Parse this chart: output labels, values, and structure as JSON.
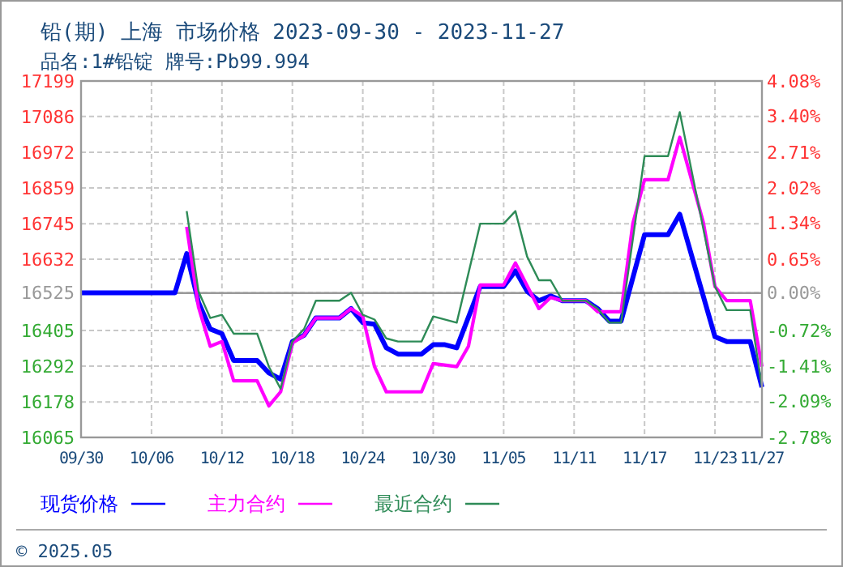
{
  "chart_data": {
    "type": "line",
    "title": "铅(期) 上海 市场价格 2023-09-30 - 2023-11-27",
    "subtitle": "品名:1#铅锭 牌号:Pb99.994",
    "annotations": [
      "© 2025.05"
    ],
    "xlim": [
      "2023-09-30",
      "2023-11-27"
    ],
    "xticks": [
      {
        "value": "2023-09-30",
        "label": "09/30"
      },
      {
        "value": "2023-10-06",
        "label": "10/06"
      },
      {
        "value": "2023-10-12",
        "label": "10/12"
      },
      {
        "value": "2023-10-18",
        "label": "10/18"
      },
      {
        "value": "2023-10-24",
        "label": "10/24"
      },
      {
        "value": "2023-10-30",
        "label": "10/30"
      },
      {
        "value": "2023-11-05",
        "label": "11/05"
      },
      {
        "value": "2023-11-11",
        "label": "11/11"
      },
      {
        "value": "2023-11-17",
        "label": "11/17"
      },
      {
        "value": "2023-11-23",
        "label": "11/23"
      },
      {
        "value": "2023-11-27",
        "label": "11/27"
      }
    ],
    "ylim": [
      16065,
      17199
    ],
    "yticks": [
      16065,
      16178,
      16292,
      16405,
      16525,
      16632,
      16745,
      16859,
      16972,
      17086,
      17199
    ],
    "y2lim": [
      -2.78,
      4.08
    ],
    "y2ticks": [
      {
        "value": -2.78,
        "label": "-2.78%"
      },
      {
        "value": -2.09,
        "label": "-2.09%"
      },
      {
        "value": -1.41,
        "label": "-1.41%"
      },
      {
        "value": -0.72,
        "label": "-0.72%"
      },
      {
        "value": 0,
        "label": "0.00%"
      },
      {
        "value": 0.65,
        "label": "0.65%"
      },
      {
        "value": 1.34,
        "label": "1.34%"
      },
      {
        "value": 2.02,
        "label": "2.02%"
      },
      {
        "value": 2.71,
        "label": "2.71%"
      },
      {
        "value": 3.4,
        "label": "3.40%"
      },
      {
        "value": 4.08,
        "label": "4.08%"
      }
    ],
    "ref_lines": [
      {
        "axis": "y2",
        "value": 0,
        "color": "#999999",
        "line_style": "solid"
      }
    ],
    "grid": true,
    "legend": "bottom",
    "marker": "none",
    "line_style": "solid",
    "series": [
      {
        "name": "现货价格",
        "color": "#0000ff",
        "x": [
          "2023-09-30",
          "2023-10-08",
          "2023-10-09",
          "2023-10-10",
          "2023-10-11",
          "2023-10-12",
          "2023-10-13",
          "2023-10-15",
          "2023-10-16",
          "2023-10-17",
          "2023-10-18",
          "2023-10-19",
          "2023-10-20",
          "2023-10-22",
          "2023-10-23",
          "2023-10-24",
          "2023-10-25",
          "2023-10-26",
          "2023-10-27",
          "2023-10-29",
          "2023-10-30",
          "2023-10-31",
          "2023-11-01",
          "2023-11-03",
          "2023-11-05",
          "2023-11-06",
          "2023-11-07",
          "2023-11-08",
          "2023-11-09",
          "2023-11-10",
          "2023-11-12",
          "2023-11-13",
          "2023-11-14",
          "2023-11-15",
          "2023-11-17",
          "2023-11-19",
          "2023-11-20",
          "2023-11-23",
          "2023-11-24",
          "2023-11-26",
          "2023-11-27"
        ],
        "values": [
          16525,
          16525,
          16650,
          16495,
          16410,
          16395,
          16310,
          16310,
          16270,
          16250,
          16370,
          16390,
          16445,
          16445,
          16475,
          16430,
          16425,
          16350,
          16330,
          16330,
          16360,
          16360,
          16350,
          16545,
          16545,
          16595,
          16530,
          16500,
          16515,
          16500,
          16500,
          16475,
          16435,
          16435,
          16710,
          16710,
          16775,
          16385,
          16370,
          16370,
          16225
        ]
      },
      {
        "name": "主力合约",
        "color": "#ff00ff",
        "x": [
          "2023-10-09",
          "2023-10-10",
          "2023-10-11",
          "2023-10-12",
          "2023-10-13",
          "2023-10-15",
          "2023-10-16",
          "2023-10-17",
          "2023-10-18",
          "2023-10-19",
          "2023-10-20",
          "2023-10-22",
          "2023-10-23",
          "2023-10-24",
          "2023-10-25",
          "2023-10-26",
          "2023-10-29",
          "2023-10-30",
          "2023-11-01",
          "2023-11-02",
          "2023-11-03",
          "2023-11-05",
          "2023-11-06",
          "2023-11-08",
          "2023-11-09",
          "2023-11-10",
          "2023-11-12",
          "2023-11-13",
          "2023-11-15",
          "2023-11-16",
          "2023-11-17",
          "2023-11-19",
          "2023-11-20",
          "2023-11-22",
          "2023-11-23",
          "2023-11-24",
          "2023-11-26",
          "2023-11-27"
        ],
        "values": [
          16735,
          16480,
          16355,
          16370,
          16245,
          16245,
          16165,
          16210,
          16365,
          16390,
          16445,
          16445,
          16475,
          16450,
          16290,
          16210,
          16210,
          16300,
          16290,
          16355,
          16550,
          16550,
          16620,
          16475,
          16510,
          16500,
          16500,
          16465,
          16465,
          16745,
          16885,
          16885,
          17020,
          16750,
          16545,
          16500,
          16500,
          16290
        ]
      },
      {
        "name": "最近合约",
        "color": "#2e8b57",
        "x": [
          "2023-10-09",
          "2023-10-10",
          "2023-10-11",
          "2023-10-12",
          "2023-10-13",
          "2023-10-15",
          "2023-10-16",
          "2023-10-17",
          "2023-10-18",
          "2023-10-19",
          "2023-10-20",
          "2023-10-22",
          "2023-10-23",
          "2023-10-24",
          "2023-10-25",
          "2023-10-26",
          "2023-10-27",
          "2023-10-29",
          "2023-10-30",
          "2023-11-01",
          "2023-11-03",
          "2023-11-05",
          "2023-11-06",
          "2023-11-07",
          "2023-11-08",
          "2023-11-09",
          "2023-11-10",
          "2023-11-12",
          "2023-11-13",
          "2023-11-14",
          "2023-11-15",
          "2023-11-17",
          "2023-11-19",
          "2023-11-20",
          "2023-11-23",
          "2023-11-24",
          "2023-11-26",
          "2023-11-27"
        ],
        "values": [
          16785,
          16530,
          16445,
          16455,
          16395,
          16395,
          16290,
          16220,
          16370,
          16410,
          16500,
          16500,
          16525,
          16455,
          16440,
          16380,
          16370,
          16370,
          16450,
          16430,
          16745,
          16745,
          16785,
          16640,
          16565,
          16565,
          16500,
          16500,
          16475,
          16430,
          16430,
          16960,
          16960,
          17100,
          16545,
          16470,
          16470,
          16225
        ]
      }
    ]
  }
}
